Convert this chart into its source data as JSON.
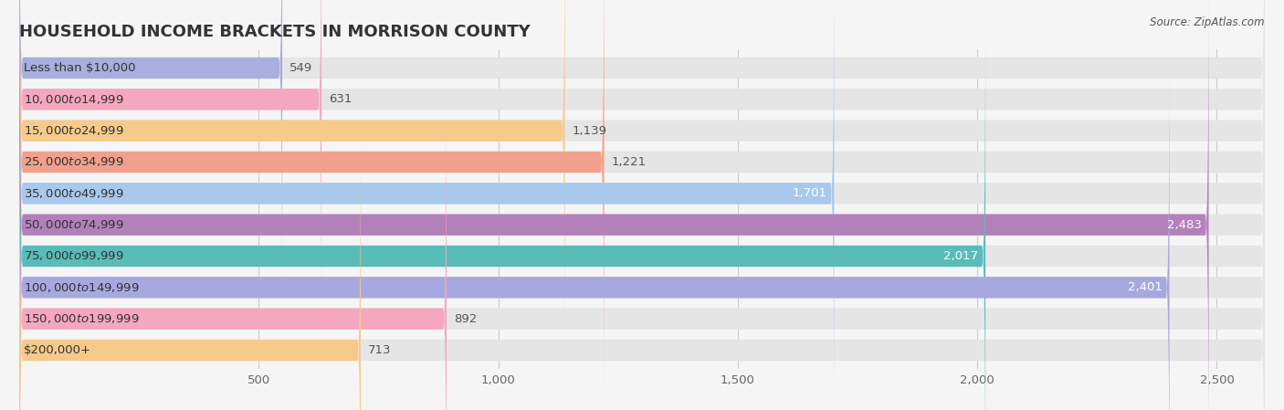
{
  "title": "HOUSEHOLD INCOME BRACKETS IN MORRISON COUNTY",
  "source": "Source: ZipAtlas.com",
  "categories": [
    "Less than $10,000",
    "$10,000 to $14,999",
    "$15,000 to $24,999",
    "$25,000 to $34,999",
    "$35,000 to $49,999",
    "$50,000 to $74,999",
    "$75,000 to $99,999",
    "$100,000 to $149,999",
    "$150,000 to $199,999",
    "$200,000+"
  ],
  "values": [
    549,
    631,
    1139,
    1221,
    1701,
    2483,
    2017,
    2401,
    892,
    713
  ],
  "bar_colors": [
    "#a8aedd",
    "#f4a7bf",
    "#f5ca8a",
    "#f0a08c",
    "#a8c8ec",
    "#b380bc",
    "#5abcb8",
    "#a8a8e0",
    "#f4a7bf",
    "#f5ca8a"
  ],
  "xlim_max": 2600,
  "xticks": [
    0,
    500,
    1000,
    1500,
    2000,
    2500
  ],
  "xtick_labels": [
    "",
    "500",
    "1,000",
    "1,500",
    "2,000",
    "2,500"
  ],
  "background_color": "#f5f5f5",
  "bar_bg_color": "#e5e5e5",
  "title_fontsize": 13,
  "cat_fontsize": 9.5,
  "val_fontsize": 9.5,
  "tick_fontsize": 9.5,
  "bar_height": 0.68,
  "value_inside_threshold": 1500
}
